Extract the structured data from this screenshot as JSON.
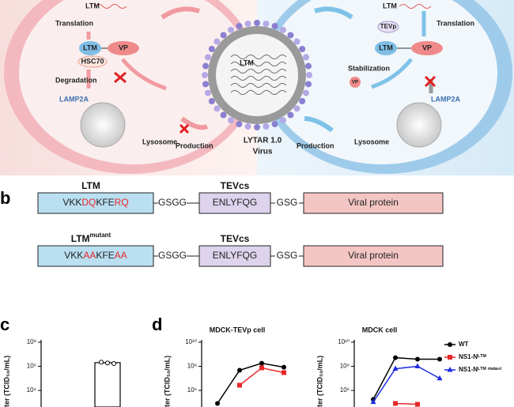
{
  "panel_a": {
    "left": {
      "mrna": "LTM",
      "translation": "Translation",
      "ltm": "LTM",
      "vp": "VP",
      "hsc70": "HSC70",
      "degradation": "Degradation",
      "lamp2a": "LAMP2A",
      "lysosome": "Lysosome",
      "production": "Production"
    },
    "virus": {
      "ltm": "LTM",
      "name_1": "LYTAR 1.0",
      "name_2": "Virus"
    },
    "right": {
      "mrna": "LTM",
      "translation": "Translation",
      "tevp": "TEVp",
      "ltm": "LTM",
      "vp": "VP",
      "stabilization": "Stabilization",
      "vp_small": "VP",
      "lamp2a": "LAMP2A",
      "lysosome": "Lysosome",
      "production": "Production"
    }
  },
  "panel_b": {
    "label": "b",
    "rows": [
      {
        "name": "LTM",
        "sequence": [
          "VKK",
          "DQ",
          "KFE",
          "RQ"
        ],
        "linker_1": "GSGG",
        "site_name": "TEVcs",
        "site": "ENLYFQG",
        "linker_2": "GSG",
        "protein": "Viral protein"
      },
      {
        "name": "LTM",
        "name_sup": "mutant",
        "sequence": [
          "VKK",
          "AA",
          "KFE",
          "AA"
        ],
        "linker_1": "GSGG",
        "site_name": "TEVcs",
        "site": "ENLYFQG",
        "linker_2": "GSG",
        "protein": "Viral protein"
      }
    ]
  },
  "panel_c": {
    "label": "c"
  },
  "panel_d": {
    "label": "d"
  },
  "chart_data": [
    {
      "type": "bar",
      "y_label": "ter (TCID₅₀/mL)",
      "categories": [
        null
      ],
      "values": [
        2000000
      ],
      "points": [
        2200000,
        1900000,
        1700000
      ],
      "color": "#ffffff",
      "log_scale": true,
      "ylim": [
        100,
        100000000
      ],
      "yticks": [
        {
          "value": 10000,
          "label": "10⁴"
        },
        {
          "value": 1000000,
          "label": "10⁶"
        },
        {
          "value": 100000000,
          "label": "10⁸"
        }
      ]
    },
    {
      "type": "line",
      "title": "MDCK-TEVp cell",
      "y_label": "ter (TCID₅₀/mL)",
      "categories": [
        null,
        null,
        null,
        null
      ],
      "log_scale": true,
      "ylim": [
        10000,
        10000000000
      ],
      "yticks": [
        {
          "value": 1000000,
          "label": "10⁶"
        },
        {
          "value": 100000000,
          "label": "10⁸"
        },
        {
          "value": 10000000000,
          "label": "10¹⁰"
        }
      ],
      "series": [
        {
          "color": "#000000",
          "marker": "circle",
          "values": [
            83000,
            47000000,
            180000000,
            85000000
          ]
        },
        {
          "color": "#e8272a",
          "marker": "square",
          "values": [
            null,
            2700000,
            74000000,
            30000000
          ]
        }
      ]
    },
    {
      "type": "line",
      "title": "MDCK cell",
      "y_label": "ter (TCID₅₀/mL)",
      "categories": [
        null,
        null,
        null,
        null
      ],
      "log_scale": true,
      "legend": "top-right",
      "ylim": [
        10000,
        10000000000
      ],
      "yticks": [
        {
          "value": 1000000,
          "label": "10⁶"
        },
        {
          "value": 100000000,
          "label": "10⁸"
        },
        {
          "value": 10000000000,
          "label": "10¹⁰"
        }
      ],
      "series": [
        {
          "name": "WT",
          "color": "#000000",
          "marker": "circle",
          "values": [
            180000,
            520000000,
            390000000,
            390000000
          ]
        },
        {
          "name": "NS1-Nᴸᵀᴹ",
          "color": "#e8272a",
          "marker": "square",
          "values": [
            null,
            83000,
            70000,
            null
          ]
        },
        {
          "name": "NS1-Nᴸᵀᴹ ᵐᵘᵗᵃⁿᵗ",
          "color": "#1d2be0",
          "marker": "triangle",
          "values": [
            110000,
            63000000,
            100000000,
            10000000
          ]
        }
      ]
    }
  ]
}
